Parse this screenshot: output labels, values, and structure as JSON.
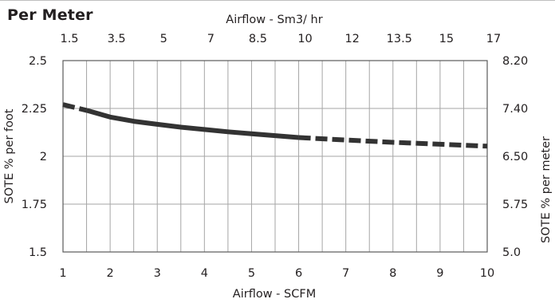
{
  "chart_data": {
    "type": "line",
    "title": "Per Meter",
    "xlabel": "Airflow - SCFM",
    "ylabel": "SOTE % per foot",
    "top_xlabel": "Airflow - Sm3/ hr",
    "right_ylabel": "SOTE % per meter",
    "x_ticks": [
      "1",
      "2",
      "3",
      "4",
      "5",
      "6",
      "7",
      "8",
      "9",
      "10"
    ],
    "top_x_ticks": [
      "1.5",
      "3.5",
      "5",
      "7",
      "8.5",
      "10",
      "12",
      "13.5",
      "15",
      "17"
    ],
    "y_ticks": [
      "1.5",
      "1.75",
      "2",
      "2.25",
      "2.5"
    ],
    "right_y_ticks": [
      "5.0",
      "5.75",
      "6.50",
      "7.40",
      "8.20"
    ],
    "xlim": [
      1,
      10
    ],
    "ylim": [
      1.5,
      2.5
    ],
    "grid": true,
    "series": [
      {
        "style": "dashed",
        "x": [
          1.0,
          1.5
        ],
        "y": [
          2.27,
          2.24
        ]
      },
      {
        "style": "solid",
        "x": [
          1.5,
          2.0,
          2.5,
          3.0,
          3.5,
          4.0,
          4.5,
          5.0,
          5.5,
          6.0
        ],
        "y": [
          2.24,
          2.205,
          2.183,
          2.167,
          2.152,
          2.14,
          2.128,
          2.118,
          2.108,
          2.098
        ]
      },
      {
        "style": "dashed",
        "x": [
          6.0,
          7.0,
          8.0,
          9.0,
          10.0
        ],
        "y": [
          2.098,
          2.085,
          2.073,
          2.063,
          2.053
        ]
      }
    ],
    "colors": {
      "line": "#333333",
      "grid": "#a6a6a6",
      "frame": "#5a5a5a",
      "text": "#231f20"
    }
  }
}
